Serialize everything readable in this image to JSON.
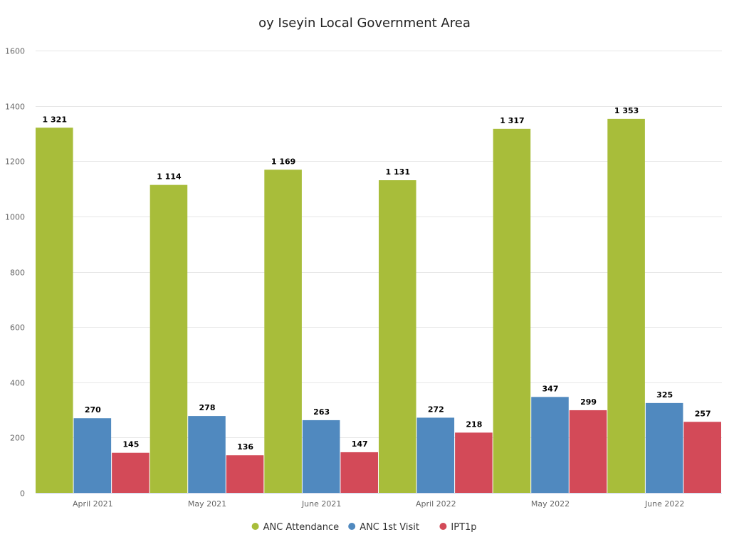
{
  "chart_data": {
    "type": "bar",
    "title": "oy Iseyin Local Government Area",
    "categories": [
      "April 2021",
      "May 2021",
      "June 2021",
      "April 2022",
      "May 2022",
      "June 2022"
    ],
    "series": [
      {
        "name": "ANC Attendance",
        "color": "#a8bd3a",
        "values": [
          1321,
          1114,
          1169,
          1131,
          1317,
          1353
        ],
        "labels": [
          "1 321",
          "1 114",
          "1 169",
          "1 131",
          "1 317",
          "1 353"
        ]
      },
      {
        "name": "ANC 1st Visit",
        "color": "#5089bf",
        "values": [
          270,
          278,
          263,
          272,
          347,
          325
        ],
        "labels": [
          "270",
          "278",
          "263",
          "272",
          "347",
          "325"
        ]
      },
      {
        "name": "IPT1p",
        "color": "#d34a58",
        "values": [
          145,
          136,
          147,
          218,
          299,
          257
        ],
        "labels": [
          "145",
          "136",
          "147",
          "218",
          "299",
          "257"
        ]
      }
    ],
    "ylim": [
      0,
      1600
    ],
    "yticks": [
      0,
      200,
      400,
      600,
      800,
      1000,
      1200,
      1400,
      1600
    ],
    "xlabel": "",
    "ylabel": "",
    "grid": true,
    "legend": "bottom-center"
  }
}
